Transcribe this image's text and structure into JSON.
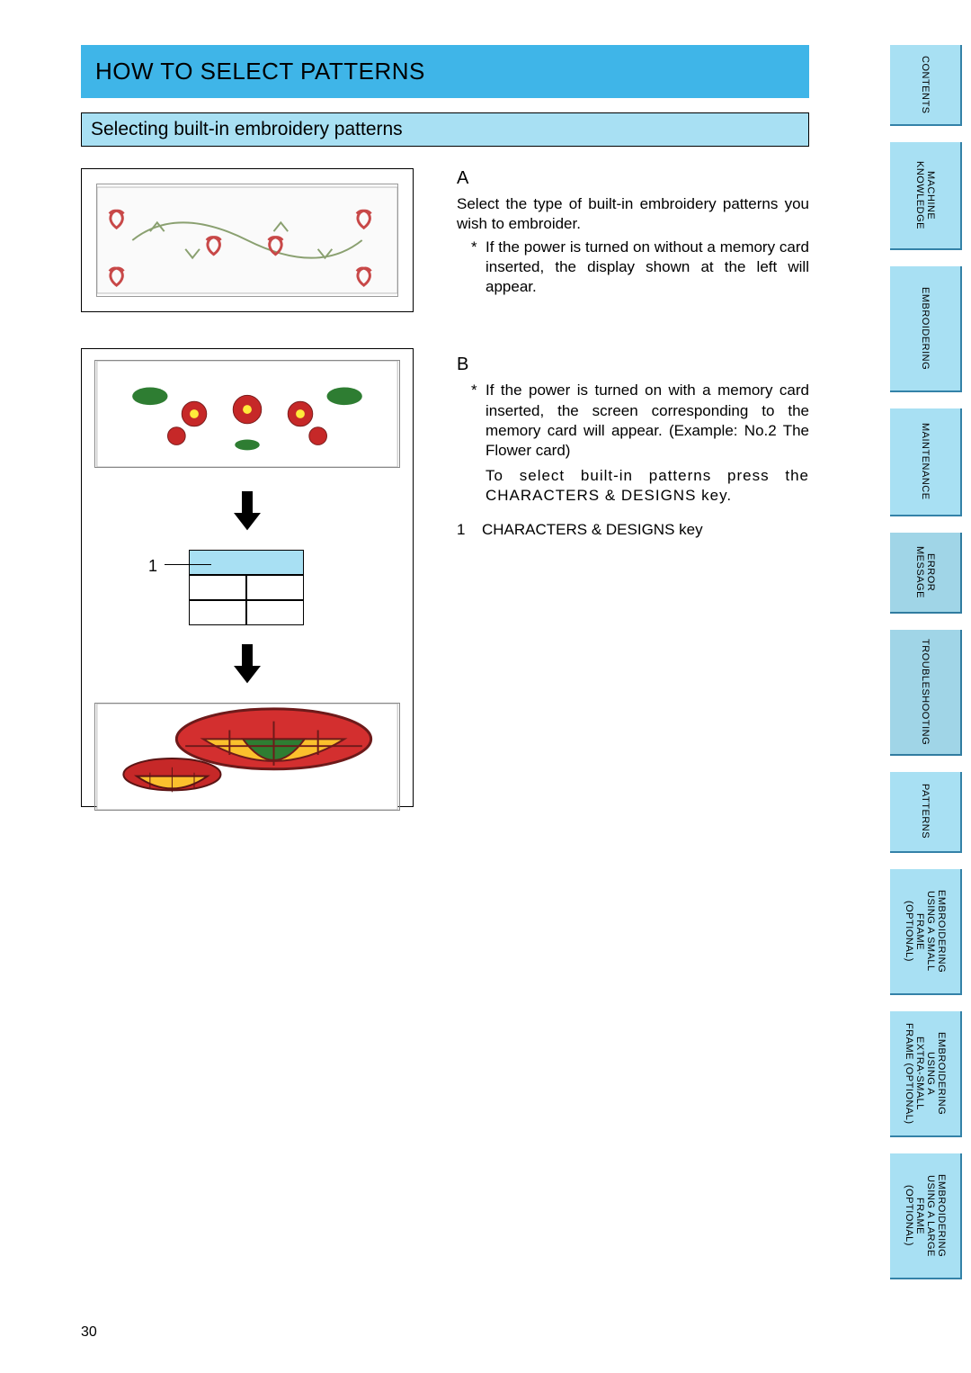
{
  "colors": {
    "primary_blue": "#3fb5e8",
    "light_blue": "#a8e0f3",
    "tab_shadow": "#3482a8",
    "border": "#000000",
    "background": "#ffffff"
  },
  "pageNumber": "30",
  "title": "HOW TO SELECT PATTERNS",
  "subtitle": "Selecting built-in embroidery patterns",
  "sections": {
    "A": {
      "heading": "A",
      "intro": "Select the type of built-in embroidery patterns you wish to embroider.",
      "bullet": "If the power is turned on without a memory card inserted, the display shown at the left will appear."
    },
    "B": {
      "heading": "B",
      "bullet": "If the power is turned on with a memory card inserted, the screen corresponding to the memory card will appear. (Example: No.2 The Flower card)",
      "toSelect": "To select built-in patterns press the CHARACTERS & DESIGNS  key.",
      "legendNum": "1",
      "legendText": "CHARACTERS & DESIGNS  key"
    }
  },
  "diagram": {
    "callout_number": "1"
  },
  "tabs": [
    {
      "label": "CONTENTS",
      "h": "h90"
    },
    {
      "label": "MACHINE\nKNOWLEDGE",
      "h": "h120"
    },
    {
      "label": "EMBROIDERING",
      "h": "h140"
    },
    {
      "label": "MAINTENANCE",
      "h": "h120"
    },
    {
      "label": "ERROR\nMESSAGE",
      "h": "h90",
      "dark": true
    },
    {
      "label": "TROUBLESHOOTING",
      "h": "h140",
      "dark": true
    },
    {
      "label": "PATTERNS",
      "h": "h90"
    },
    {
      "label": "EMBROIDERING\nUSING A SMALL\nFRAME\n(OPTIONAL)",
      "h": "h140"
    },
    {
      "label": "EMBROIDERING\nUSING A\nEXTRA-SMALL\nFRAME (OPTIONAL)",
      "h": "h140"
    },
    {
      "label": "EMBROIDERING\nUSING A LARGE\nFRAME\n(OPTIONAL)",
      "h": "h140"
    }
  ]
}
